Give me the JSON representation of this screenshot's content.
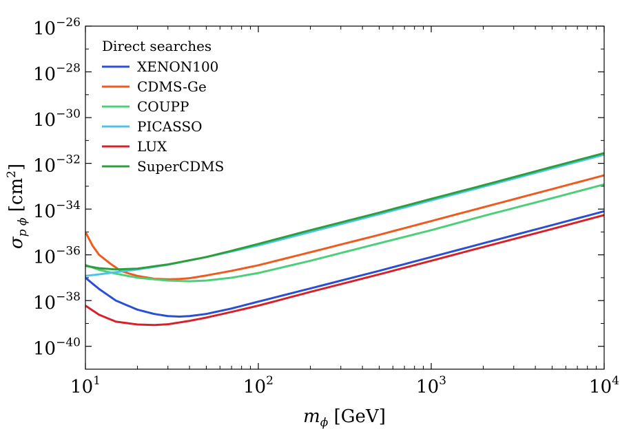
{
  "chart_data": {
    "type": "line",
    "title": "",
    "xlabel": {
      "main": "m",
      "sub": "ϕ",
      "unit": " [GeV]"
    },
    "ylabel": {
      "main": "σ",
      "sub": "p ϕ",
      "unit_open": " [cm",
      "unit_exp": "2",
      "unit_close": "]"
    },
    "x_scale": "log10",
    "y_scale": "log10",
    "xlim": [
      10,
      10000
    ],
    "ylim": [
      1e-41,
      1e-26
    ],
    "x_ticks": [
      {
        "base": "10",
        "exp": "1",
        "value": 10
      },
      {
        "base": "10",
        "exp": "2",
        "value": 100
      },
      {
        "base": "10",
        "exp": "3",
        "value": 1000
      },
      {
        "base": "10",
        "exp": "4",
        "value": 10000
      }
    ],
    "y_ticks": [
      {
        "base": "10",
        "exp": "−26",
        "value": 1e-26
      },
      {
        "base": "10",
        "exp": "−28",
        "value": 1e-28
      },
      {
        "base": "10",
        "exp": "−30",
        "value": 1e-30
      },
      {
        "base": "10",
        "exp": "−32",
        "value": 1e-32
      },
      {
        "base": "10",
        "exp": "−34",
        "value": 1e-34
      },
      {
        "base": "10",
        "exp": "−36",
        "value": 1e-36
      },
      {
        "base": "10",
        "exp": "−38",
        "value": 1e-38
      },
      {
        "base": "10",
        "exp": "−40",
        "value": 1e-40
      }
    ],
    "legend": {
      "title": "Direct searches",
      "position": "top-left"
    },
    "series": [
      {
        "name": "XENON100",
        "color": "#2a4fd6",
        "points": [
          [
            10,
            1e-37
          ],
          [
            12,
            3.2e-38
          ],
          [
            15,
            1e-38
          ],
          [
            20,
            4e-39
          ],
          [
            25,
            2.6e-39
          ],
          [
            30,
            2.1e-39
          ],
          [
            35,
            2e-39
          ],
          [
            40,
            2.1e-39
          ],
          [
            50,
            2.6e-39
          ],
          [
            70,
            4.5e-39
          ],
          [
            100,
            9e-39
          ],
          [
            200,
            3.4e-38
          ],
          [
            500,
            2e-37
          ],
          [
            1000,
            8e-37
          ],
          [
            2000,
            3.2e-36
          ],
          [
            5000,
            2e-35
          ],
          [
            10000,
            8e-35
          ]
        ]
      },
      {
        "name": "CDMS-Ge",
        "color": "#f05a1e",
        "points": [
          [
            10,
            1e-35
          ],
          [
            11,
            2.5e-36
          ],
          [
            12,
            1e-36
          ],
          [
            14,
            4e-37
          ],
          [
            16,
            2e-37
          ],
          [
            18,
            1.5e-37
          ],
          [
            20,
            1.2e-37
          ],
          [
            25,
            9e-38
          ],
          [
            30,
            8.5e-38
          ],
          [
            35,
            8.8e-38
          ],
          [
            40,
            9.5e-38
          ],
          [
            50,
            1.25e-37
          ],
          [
            70,
            2e-37
          ],
          [
            100,
            3.5e-37
          ],
          [
            200,
            1.3e-36
          ],
          [
            500,
            7.5e-36
          ],
          [
            1000,
            3e-35
          ],
          [
            2000,
            1.2e-34
          ],
          [
            5000,
            7.5e-34
          ],
          [
            10000,
            3e-33
          ]
        ]
      },
      {
        "name": "COUPP",
        "color": "#4ccf79",
        "points": [
          [
            10,
            3.6e-37
          ],
          [
            12,
            2.2e-37
          ],
          [
            15,
            1.5e-37
          ],
          [
            20,
            1e-37
          ],
          [
            25,
            8.5e-38
          ],
          [
            30,
            7.5e-38
          ],
          [
            40,
            7e-38
          ],
          [
            50,
            7.5e-38
          ],
          [
            70,
            1e-37
          ],
          [
            100,
            1.6e-37
          ],
          [
            200,
            5.5e-37
          ],
          [
            500,
            3.2e-36
          ],
          [
            1000,
            1.2e-35
          ],
          [
            2000,
            5e-35
          ],
          [
            5000,
            3e-34
          ],
          [
            10000,
            1.2e-33
          ]
        ]
      },
      {
        "name": "PICASSO",
        "color": "#4cc3ea",
        "points": [
          [
            10,
            1.2e-37
          ],
          [
            12,
            1.4e-37
          ],
          [
            15,
            1.75e-37
          ],
          [
            20,
            2.3e-37
          ],
          [
            30,
            3.7e-37
          ],
          [
            50,
            8e-37
          ],
          [
            70,
            1.4e-36
          ],
          [
            100,
            2.6e-36
          ],
          [
            200,
            1e-35
          ],
          [
            500,
            6e-35
          ],
          [
            1000,
            2.4e-34
          ],
          [
            2000,
            9.5e-34
          ],
          [
            5000,
            6e-33
          ],
          [
            10000,
            2.4e-32
          ]
        ]
      },
      {
        "name": "LUX",
        "color": "#d81f2a",
        "points": [
          [
            10,
            6e-39
          ],
          [
            12,
            2.4e-39
          ],
          [
            15,
            1.2e-39
          ],
          [
            20,
            9e-40
          ],
          [
            25,
            8.5e-40
          ],
          [
            30,
            9.2e-40
          ],
          [
            40,
            1.3e-39
          ],
          [
            50,
            1.8e-39
          ],
          [
            70,
            3.2e-39
          ],
          [
            100,
            6e-39
          ],
          [
            200,
            2.4e-38
          ],
          [
            500,
            1.4e-37
          ],
          [
            1000,
            5.5e-37
          ],
          [
            2000,
            2.2e-36
          ],
          [
            5000,
            1.35e-35
          ],
          [
            10000,
            5.5e-35
          ]
        ]
      },
      {
        "name": "SuperCDMS",
        "color": "#2e9e3a",
        "points": [
          [
            10,
            3.3e-37
          ],
          [
            12,
            2.6e-37
          ],
          [
            15,
            2.3e-37
          ],
          [
            20,
            2.5e-37
          ],
          [
            30,
            3.8e-37
          ],
          [
            50,
            8e-37
          ],
          [
            70,
            1.5e-36
          ],
          [
            100,
            3e-36
          ],
          [
            200,
            1.2e-35
          ],
          [
            500,
            7e-35
          ],
          [
            1000,
            2.8e-34
          ],
          [
            2000,
            1.1e-33
          ],
          [
            5000,
            7e-33
          ],
          [
            10000,
            2.8e-32
          ]
        ]
      }
    ]
  }
}
